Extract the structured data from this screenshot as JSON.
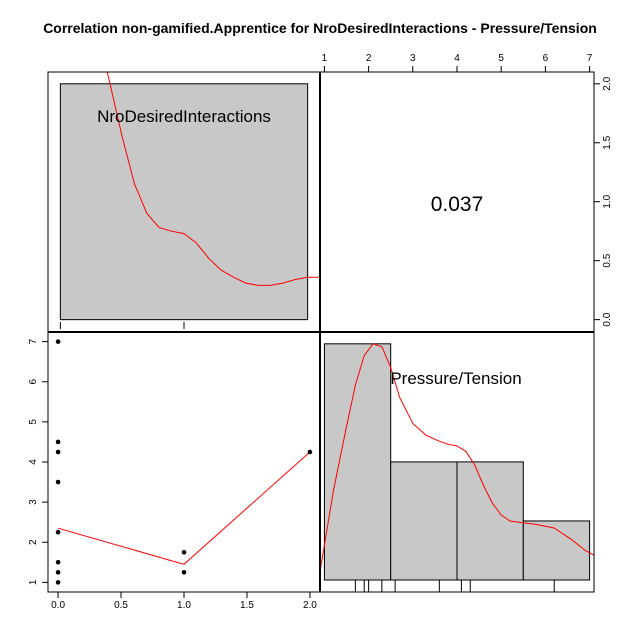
{
  "chart_data": {
    "type": "pairs",
    "title": "Correlation non-gamified.Apprentice for NroDesiredInteractions - Pressure/Tension",
    "variables": [
      "NroDesiredInteractions",
      "Pressure/Tension"
    ],
    "correlation": "0.037",
    "colors": {
      "bar": "#c8c8c8",
      "curve": "#ff0000",
      "point": "#000000"
    },
    "diag_top_left": {
      "type": "bar+density",
      "bars": [
        {
          "x0": 0,
          "x1": 2,
          "height": 2.0
        }
      ],
      "density": [
        [
          0.38,
          2.1
        ],
        [
          0.5,
          1.55
        ],
        [
          0.6,
          1.15
        ],
        [
          0.7,
          0.9
        ],
        [
          0.8,
          0.78
        ],
        [
          0.9,
          0.75
        ],
        [
          1.0,
          0.73
        ],
        [
          1.1,
          0.65
        ],
        [
          1.2,
          0.52
        ],
        [
          1.3,
          0.42
        ],
        [
          1.4,
          0.36
        ],
        [
          1.5,
          0.31
        ],
        [
          1.6,
          0.29
        ],
        [
          1.7,
          0.29
        ],
        [
          1.8,
          0.31
        ],
        [
          1.9,
          0.34
        ],
        [
          2.0,
          0.36
        ],
        [
          2.1,
          0.36
        ]
      ],
      "x_ticks": [
        0,
        0.5,
        1.0,
        1.5,
        2.0
      ],
      "y_ticks": [
        "0.0",
        "0.5",
        "1.0",
        "1.5",
        "2.0"
      ],
      "xlim": [
        -0.1,
        2.1
      ],
      "ylim": [
        -0.02,
        2.1
      ]
    },
    "diag_bottom_right": {
      "type": "histogram+density",
      "bins": [
        {
          "x0": 1,
          "x1": 2.5,
          "count": 4
        },
        {
          "x0": 2.5,
          "x1": 4,
          "count": 2
        },
        {
          "x0": 4,
          "x1": 5.5,
          "count": 2
        },
        {
          "x0": 5.5,
          "x1": 7,
          "count": 1
        }
      ],
      "density": [
        [
          0.9,
          0.14
        ],
        [
          1.2,
          1.5
        ],
        [
          1.5,
          2.6
        ],
        [
          1.7,
          3.3
        ],
        [
          1.9,
          3.8
        ],
        [
          2.1,
          4.0
        ],
        [
          2.3,
          3.95
        ],
        [
          2.5,
          3.6
        ],
        [
          2.7,
          3.1
        ],
        [
          3.0,
          2.65
        ],
        [
          3.3,
          2.45
        ],
        [
          3.6,
          2.35
        ],
        [
          3.8,
          2.3
        ],
        [
          4.0,
          2.27
        ],
        [
          4.2,
          2.18
        ],
        [
          4.4,
          1.95
        ],
        [
          4.6,
          1.6
        ],
        [
          4.8,
          1.3
        ],
        [
          5.0,
          1.1
        ],
        [
          5.2,
          1.0
        ],
        [
          5.5,
          0.97
        ],
        [
          5.8,
          0.94
        ],
        [
          6.2,
          0.88
        ],
        [
          6.6,
          0.68
        ],
        [
          6.9,
          0.5
        ],
        [
          7.1,
          0.42
        ]
      ],
      "rug": [
        1.7,
        1.9,
        2.0,
        2.3,
        2.6,
        3.6,
        4.1,
        4.3,
        6.2
      ],
      "x_ticks": [
        1,
        2,
        3,
        4,
        5,
        6,
        7
      ],
      "xlim": [
        0.9,
        7.1
      ],
      "ylim": [
        0,
        4.2
      ]
    },
    "scatter": {
      "x_label": "NroDesiredInteractions",
      "y_label": "Pressure/Tension",
      "points": [
        [
          0,
          7
        ],
        [
          0,
          4.5
        ],
        [
          0,
          4.25
        ],
        [
          0,
          3.5
        ],
        [
          0,
          2.25
        ],
        [
          0,
          1.5
        ],
        [
          0,
          1.25
        ],
        [
          0,
          1
        ],
        [
          1,
          1.75
        ],
        [
          1,
          1.25
        ],
        [
          2,
          4.25
        ]
      ],
      "smooth": [
        [
          0,
          2.35
        ],
        [
          1,
          1.45
        ],
        [
          2,
          4.25
        ]
      ],
      "x_ticks": [
        "0.0",
        "0.5",
        "1.0",
        "1.5",
        "2.0"
      ],
      "y_ticks": [
        "1",
        "2",
        "3",
        "4",
        "5",
        "6",
        "7"
      ],
      "xlim": [
        -0.08,
        2.08
      ],
      "ylim": [
        0.76,
        7.24
      ]
    }
  }
}
